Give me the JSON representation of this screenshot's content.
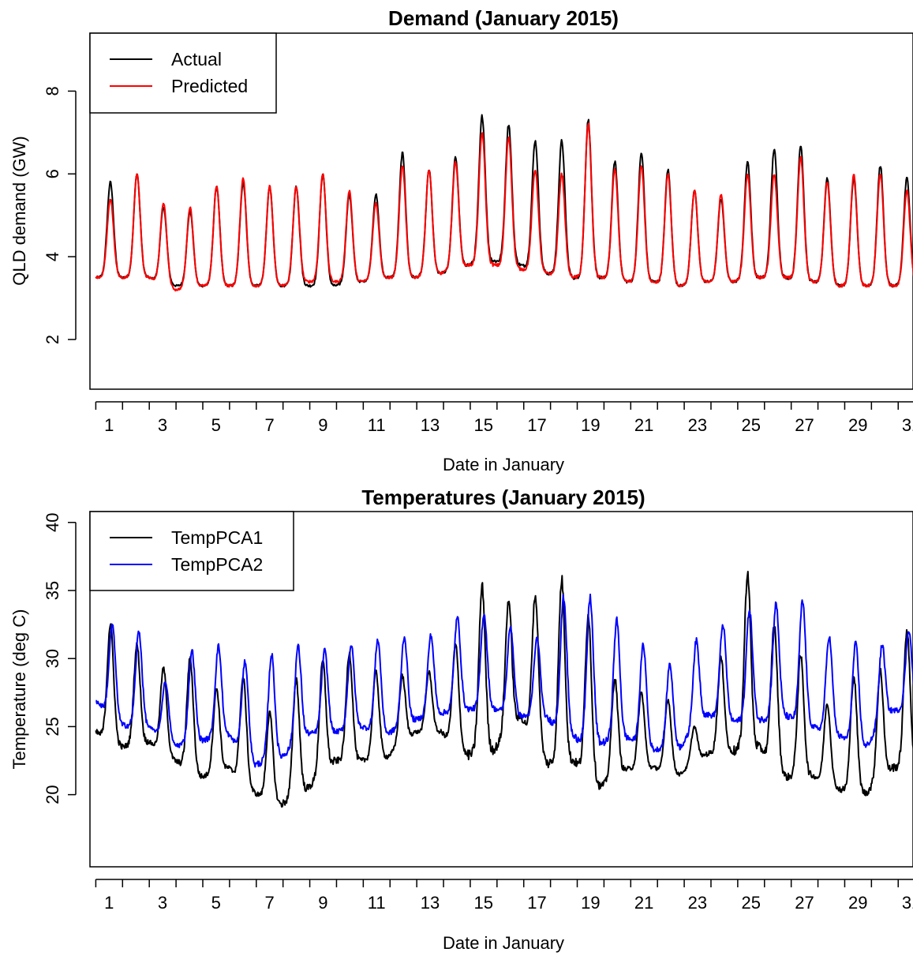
{
  "chart_data": [
    {
      "type": "line",
      "title": "Demand (January 2015)",
      "xlabel": "Date in January",
      "ylabel": "QLD demand (GW)",
      "xlim": [
        0.5,
        31.5
      ],
      "ylim": [
        0.8,
        9.4
      ],
      "x_tick_labels": [
        "1",
        "3",
        "5",
        "7",
        "9",
        "11",
        "13",
        "15",
        "17",
        "19",
        "21",
        "23",
        "25",
        "27",
        "29",
        "31"
      ],
      "y_tick_labels": [
        "2",
        "4",
        "6",
        "8"
      ],
      "legend_position": "top-left",
      "grid": false,
      "series": [
        {
          "name": "Actual",
          "color": "#000000",
          "daily_min": [
            3.5,
            3.5,
            3.5,
            3.3,
            3.3,
            3.3,
            3.3,
            3.3,
            3.3,
            3.3,
            3.4,
            3.5,
            3.5,
            3.6,
            3.8,
            3.9,
            3.8,
            3.6,
            3.5,
            3.5,
            3.4,
            3.4,
            3.3,
            3.4,
            3.4,
            3.5,
            3.5,
            3.4,
            3.3,
            3.3,
            3.3
          ],
          "daily_max": [
            5.8,
            6.0,
            5.2,
            5.1,
            5.7,
            5.8,
            5.7,
            5.7,
            6.0,
            5.5,
            5.5,
            6.5,
            6.1,
            6.4,
            7.4,
            7.2,
            6.8,
            6.8,
            7.3,
            6.3,
            6.5,
            6.1,
            5.6,
            5.4,
            6.3,
            6.6,
            6.7,
            5.9,
            5.9,
            6.2,
            5.9
          ]
        },
        {
          "name": "Predicted",
          "color": "#ff0000",
          "daily_min": [
            3.5,
            3.5,
            3.5,
            3.2,
            3.3,
            3.3,
            3.3,
            3.3,
            3.4,
            3.4,
            3.4,
            3.5,
            3.5,
            3.6,
            3.8,
            3.8,
            3.7,
            3.6,
            3.5,
            3.5,
            3.4,
            3.4,
            3.3,
            3.4,
            3.4,
            3.5,
            3.5,
            3.4,
            3.3,
            3.3,
            3.3
          ],
          "daily_max": [
            5.4,
            6.0,
            5.3,
            5.2,
            5.7,
            5.9,
            5.7,
            5.7,
            6.0,
            5.6,
            5.3,
            6.2,
            6.1,
            6.3,
            7.0,
            6.9,
            6.1,
            6.0,
            7.2,
            6.1,
            6.2,
            6.0,
            5.6,
            5.5,
            6.0,
            6.0,
            6.4,
            5.8,
            6.0,
            6.0,
            5.6
          ]
        }
      ]
    },
    {
      "type": "line",
      "title": "Temperatures (January 2015)",
      "xlabel": "Date in January",
      "ylabel": "Temperature (deg C)",
      "xlim": [
        0.5,
        31.5
      ],
      "ylim": [
        14.7,
        40.8
      ],
      "x_tick_labels": [
        "1",
        "3",
        "5",
        "7",
        "9",
        "11",
        "13",
        "15",
        "17",
        "19",
        "21",
        "23",
        "25",
        "27",
        "29",
        "31"
      ],
      "y_tick_labels": [
        "20",
        "25",
        "30",
        "35",
        "40"
      ],
      "legend_position": "top-left",
      "grid": false,
      "series": [
        {
          "name": "TempPCA1",
          "color": "#000000",
          "daily_min": [
            24.6,
            23.5,
            23.9,
            22.5,
            21.3,
            22.0,
            20.1,
            19.3,
            20.5,
            22.5,
            22.5,
            22.8,
            24.6,
            24.6,
            22.9,
            23.3,
            25.8,
            22.3,
            22.5,
            20.6,
            21.9,
            22.0,
            21.5,
            23.0,
            23.2,
            23.5,
            21.3,
            21.4,
            20.4,
            20.1,
            22.0
          ],
          "daily_max": [
            32.5,
            31.0,
            29.3,
            30.0,
            27.8,
            28.6,
            26.0,
            28.5,
            29.8,
            30.4,
            29.0,
            28.7,
            29.0,
            31.0,
            35.3,
            34.3,
            34.6,
            35.8,
            33.2,
            28.5,
            27.5,
            27.0,
            25.0,
            30.0,
            36.3,
            32.5,
            30.2,
            26.7,
            28.7,
            29.1,
            32.1
          ]
        },
        {
          "name": "TempPCA2",
          "color": "#0000ff",
          "daily_min": [
            26.9,
            25.1,
            25.0,
            23.6,
            24.0,
            24.4,
            22.2,
            22.8,
            24.5,
            24.6,
            25.0,
            24.5,
            25.5,
            26.0,
            26.3,
            26.3,
            25.8,
            25.6,
            24.2,
            23.8,
            24.2,
            23.3,
            23.5,
            25.9,
            25.4,
            25.5,
            25.8,
            25.0,
            24.3,
            23.5,
            26.2
          ],
          "daily_max": [
            32.5,
            32.0,
            28.3,
            30.6,
            30.9,
            29.8,
            30.3,
            30.9,
            30.6,
            31.0,
            31.4,
            31.6,
            31.7,
            33.0,
            33.3,
            32.3,
            31.5,
            34.5,
            34.5,
            32.8,
            31.0,
            29.6,
            31.3,
            32.5,
            33.6,
            34.0,
            34.2,
            31.6,
            31.1,
            31.0,
            32.1
          ]
        }
      ]
    }
  ]
}
